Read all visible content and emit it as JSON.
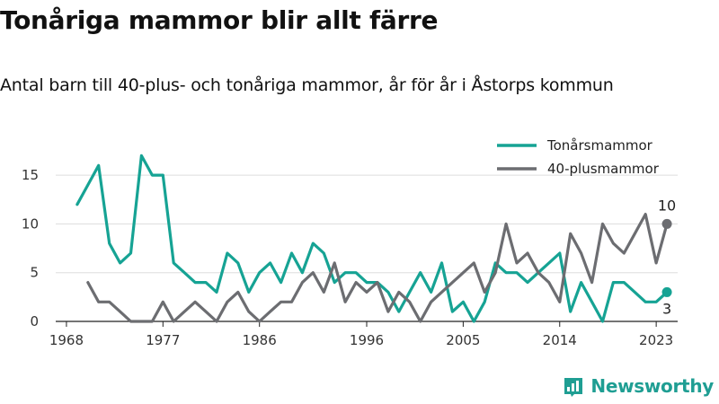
{
  "title": "Tonåriga mammor blir allt färre",
  "subtitle": "Antal barn till 40-plus- och tonåriga mammor, år för år i Åstorps kommun",
  "brand": "Newsworthy",
  "colors": {
    "teal": "#16a394",
    "gray": "#6c6d71",
    "grid": "#dddddd",
    "brand": "#1f9e93"
  },
  "chart_data": {
    "type": "line",
    "title": "",
    "xlabel": "",
    "ylabel": "",
    "xlim": [
      1967,
      2025
    ],
    "ylim": [
      0,
      17.5
    ],
    "x_ticks": [
      1968,
      1977,
      1986,
      1996,
      2005,
      2014,
      2023
    ],
    "y_ticks": [
      0,
      5,
      10,
      15
    ],
    "grid": "horizontal",
    "legend_position": "top-right",
    "series": [
      {
        "name": "Tonårsmammor",
        "color": "#16a394",
        "x": [
          1969,
          1970,
          1971,
          1972,
          1973,
          1974,
          1975,
          1976,
          1977,
          1978,
          1979,
          1980,
          1981,
          1982,
          1983,
          1984,
          1985,
          1986,
          1987,
          1988,
          1989,
          1990,
          1991,
          1992,
          1993,
          1994,
          1995,
          1996,
          1997,
          1998,
          1999,
          2000,
          2001,
          2002,
          2003,
          2004,
          2005,
          2006,
          2007,
          2008,
          2009,
          2010,
          2011,
          2012,
          2013,
          2014,
          2015,
          2016,
          2017,
          2018,
          2019,
          2020,
          2021,
          2022,
          2023,
          2024
        ],
        "values": [
          12,
          14,
          16,
          8,
          6,
          7,
          17,
          15,
          15,
          6,
          5,
          4,
          4,
          3,
          7,
          6,
          3,
          5,
          6,
          4,
          7,
          5,
          8,
          7,
          4,
          5,
          5,
          4,
          4,
          3,
          1,
          3,
          5,
          3,
          6,
          1,
          2,
          0,
          2,
          6,
          5,
          5,
          4,
          5,
          6,
          7,
          1,
          4,
          2,
          0,
          4,
          4,
          3,
          2,
          2,
          3
        ],
        "end_label": "3"
      },
      {
        "name": "40-plusmammor",
        "color": "#6c6d71",
        "x": [
          1970,
          1971,
          1972,
          1973,
          1974,
          1975,
          1976,
          1977,
          1978,
          1979,
          1980,
          1981,
          1982,
          1983,
          1984,
          1985,
          1986,
          1987,
          1988,
          1989,
          1990,
          1991,
          1992,
          1993,
          1994,
          1995,
          1996,
          1997,
          1998,
          1999,
          2000,
          2001,
          2002,
          2003,
          2004,
          2005,
          2006,
          2007,
          2008,
          2009,
          2010,
          2011,
          2012,
          2013,
          2014,
          2015,
          2016,
          2017,
          2018,
          2019,
          2020,
          2021,
          2022,
          2023,
          2024
        ],
        "values": [
          4,
          2,
          2,
          1,
          0,
          0,
          0,
          2,
          0,
          1,
          2,
          1,
          0,
          2,
          3,
          1,
          0,
          1,
          2,
          2,
          4,
          5,
          3,
          6,
          2,
          4,
          3,
          4,
          1,
          3,
          2,
          0,
          2,
          3,
          4,
          5,
          6,
          3,
          5,
          10,
          6,
          7,
          5,
          4,
          2,
          9,
          7,
          4,
          10,
          8,
          7,
          9,
          11,
          6,
          10
        ],
        "end_label": "10"
      }
    ]
  }
}
